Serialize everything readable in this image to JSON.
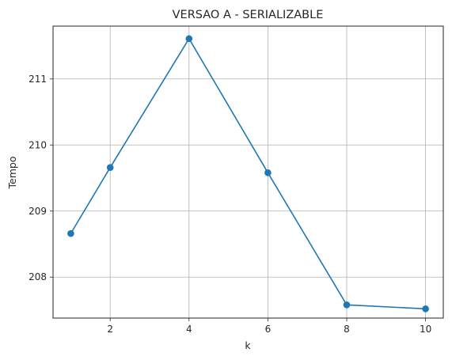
{
  "chart_data": {
    "type": "line",
    "title": "VERSAO A - SERIALIZABLE",
    "xlabel": "k",
    "ylabel": "Tempo",
    "x": [
      1,
      2,
      4,
      6,
      8,
      10
    ],
    "series": [
      {
        "values": [
          208.66,
          209.66,
          211.61,
          209.58,
          207.58,
          207.52
        ]
      }
    ],
    "xlim": [
      0.55,
      10.45
    ],
    "ylim": [
      207.38,
      211.8
    ],
    "xticks": [
      2,
      4,
      6,
      8,
      10
    ],
    "yticks": [
      208,
      209,
      210,
      211
    ],
    "grid": true,
    "markers": true,
    "line_color": "#1f77b4"
  }
}
